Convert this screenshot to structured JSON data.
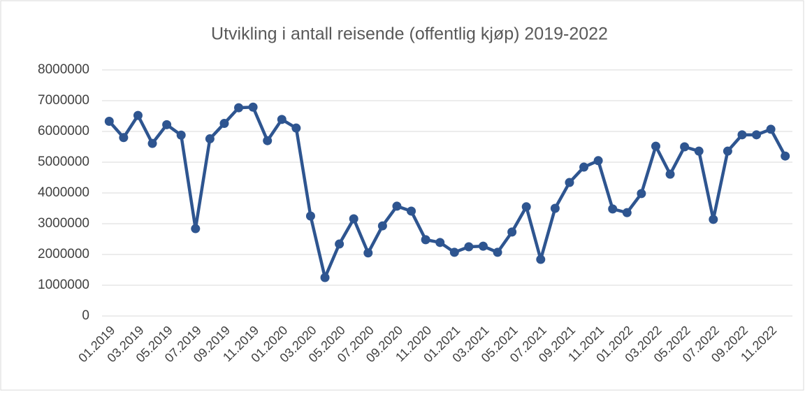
{
  "chart_data": {
    "type": "line",
    "title": "Utvikling i antall reisende (offentlig kjøp) 2019-2022",
    "categories": [
      "01.2019",
      null,
      "03.2019",
      null,
      "05.2019",
      null,
      "07.2019",
      null,
      "09.2019",
      null,
      "11.2019",
      null,
      "01.2020",
      null,
      "03.2020",
      null,
      "05.2020",
      null,
      "07.2020",
      null,
      "09.2020",
      null,
      "11.2020",
      null,
      "01.2021",
      null,
      "03.2021",
      null,
      "05.2021",
      null,
      "07.2021",
      null,
      "09.2021",
      null,
      "11.2021",
      null,
      "01.2022",
      null,
      "03.2022",
      null,
      "05.2022",
      null,
      "07.2022",
      null,
      "09.2022",
      null,
      "11.2022",
      null
    ],
    "series": [
      {
        "name": "Antall reisende",
        "color": "#2e5590",
        "values": [
          6330000,
          5800000,
          6520000,
          5610000,
          6220000,
          5880000,
          2840000,
          5760000,
          6260000,
          6770000,
          6790000,
          5700000,
          6390000,
          6110000,
          3250000,
          1250000,
          2340000,
          3160000,
          2050000,
          2930000,
          3570000,
          3410000,
          2480000,
          2390000,
          2070000,
          2250000,
          2270000,
          2070000,
          2730000,
          3550000,
          1840000,
          3500000,
          4340000,
          4840000,
          5050000,
          3480000,
          3360000,
          3980000,
          5520000,
          4610000,
          5500000,
          5360000,
          3140000,
          5360000,
          5890000,
          5890000,
          6070000,
          5200000
        ]
      }
    ],
    "ylim": [
      0,
      8000000
    ],
    "yticks": [
      0,
      1000000,
      2000000,
      3000000,
      4000000,
      5000000,
      6000000,
      7000000,
      8000000
    ],
    "grid": true
  }
}
